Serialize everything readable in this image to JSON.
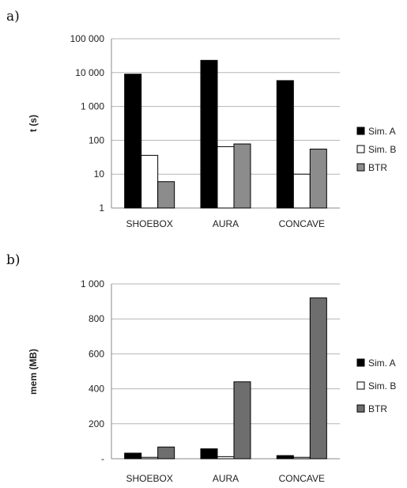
{
  "chart_data": [
    {
      "type": "bar",
      "panel_label": "a)",
      "categories": [
        "SHOEBOX",
        "AURA",
        "CONCAVE"
      ],
      "series": [
        {
          "name": "Sim. A",
          "values": [
            9000,
            23000,
            5800
          ],
          "color": "#000000"
        },
        {
          "name": "Sim. B",
          "values": [
            36,
            65,
            10
          ],
          "color": "#ffffff"
        },
        {
          "name": "BTR",
          "values": [
            6,
            78,
            55
          ],
          "color": "#8c8c8c"
        }
      ],
      "ylabel": "t (s)",
      "yscale": "log",
      "ylim": [
        1,
        100000
      ],
      "yticks": [
        1,
        10,
        100,
        1000,
        10000,
        100000
      ],
      "ytick_labels": [
        "1",
        "10",
        "100",
        "1 000",
        "10 000",
        "100 000"
      ],
      "grid": true,
      "legend_position": "right"
    },
    {
      "type": "bar",
      "panel_label": "b)",
      "categories": [
        "SHOEBOX",
        "AURA",
        "CONCAVE"
      ],
      "series": [
        {
          "name": "Sim. A",
          "values": [
            32,
            57,
            18
          ],
          "color": "#000000"
        },
        {
          "name": "Sim. B",
          "values": [
            8,
            12,
            8
          ],
          "color": "#ffffff"
        },
        {
          "name": "BTR",
          "values": [
            67,
            440,
            920
          ],
          "color": "#6e6e6e"
        }
      ],
      "ylabel": "mem (MB)",
      "yscale": "linear",
      "ylim": [
        0,
        1000
      ],
      "yticks": [
        0,
        200,
        400,
        600,
        800,
        1000
      ],
      "ytick_labels": [
        "-",
        "200",
        "400",
        "600",
        "800",
        "1 000"
      ],
      "grid": true,
      "legend_position": "right"
    }
  ]
}
